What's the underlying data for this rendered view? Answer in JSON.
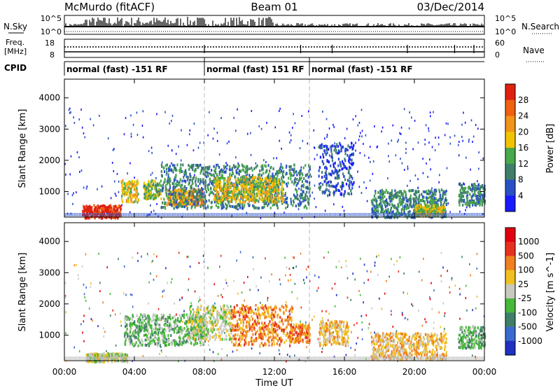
{
  "header": {
    "station": "McMurdo (fitACF)",
    "beam": "Beam 01",
    "date": "03/Dec/2014"
  },
  "top_panels": {
    "nsky_label": "N.Sky",
    "nsearch_label": "N.Search",
    "freq_label": "Freq.",
    "freq_unit": "[MHz]",
    "nave_label": "Nave",
    "cpid_label": "CPID",
    "left_ticks": {
      "nsky_top": "10^5",
      "nsky_bottom": "10^0",
      "freq_top": "18",
      "freq_bottom": "8"
    },
    "right_ticks": {
      "nsky_top": "10^5",
      "nsky_bottom": "10^0",
      "nave_top": "60",
      "nave_bottom": "0"
    }
  },
  "cpid_segments": [
    {
      "label": "normal (fast) -151 RF",
      "start_hour": 0,
      "end_hour": 8
    },
    {
      "label": "normal (fast) 151 RF",
      "start_hour": 8,
      "end_hour": 14
    },
    {
      "label": "normal (fast) -151 RF",
      "start_hour": 14,
      "end_hour": 24
    }
  ],
  "chart_data": [
    {
      "type": "heatmap",
      "name": "power",
      "ylabel": "Slant Range [km]",
      "xlim": [
        0,
        24
      ],
      "ylim": [
        180,
        4600
      ],
      "yticks": [
        "1000",
        "2000",
        "3000",
        "4000"
      ],
      "colorbar": {
        "label": "Power [dB]",
        "ticks": [
          "4",
          "8",
          "12",
          "16",
          "20",
          "24",
          "28"
        ],
        "colors": [
          "#1a1aff",
          "#2a50c8",
          "#3f7f6a",
          "#49a84a",
          "#f2c300",
          "#f0951a",
          "#f06010",
          "#e02010"
        ]
      },
      "blobs": [
        {
          "t0": 1.0,
          "t1": 3.2,
          "r0": 180,
          "r1": 600,
          "level": 7
        },
        {
          "t0": 3.2,
          "t1": 4.2,
          "r0": 700,
          "r1": 1400,
          "level": 4
        },
        {
          "t0": 4.5,
          "t1": 5.5,
          "r0": 800,
          "r1": 1400,
          "level": 3
        },
        {
          "t0": 5.8,
          "t1": 8.0,
          "r0": 600,
          "r1": 1100,
          "level": 5
        },
        {
          "t0": 5.5,
          "t1": 14.0,
          "r0": 500,
          "r1": 1900,
          "level": 2
        },
        {
          "t0": 8.5,
          "t1": 12.5,
          "r0": 700,
          "r1": 1500,
          "level": 4
        },
        {
          "t0": 14.5,
          "t1": 16.5,
          "r0": 900,
          "r1": 2600,
          "level": 1
        },
        {
          "t0": 17.5,
          "t1": 21.8,
          "r0": 200,
          "r1": 1100,
          "level": 2
        },
        {
          "t0": 20.0,
          "t1": 21.7,
          "r0": 250,
          "r1": 600,
          "level": 4
        },
        {
          "t0": 22.5,
          "t1": 24.0,
          "r0": 600,
          "r1": 1300,
          "level": 2
        }
      ]
    },
    {
      "type": "heatmap",
      "name": "velocity",
      "ylabel": "Slant Range [km]",
      "xlabel": "Time UT",
      "xlim": [
        0,
        24
      ],
      "ylim": [
        180,
        4600
      ],
      "xticks": [
        "00:00",
        "04:00",
        "08:00",
        "12:00",
        "16:00",
        "20:00",
        "00:00"
      ],
      "yticks": [
        "1000",
        "2000",
        "3000",
        "4000"
      ],
      "colorbar": {
        "label": "Velocity [m s^-1]",
        "ticks": [
          "1000",
          "500",
          "100",
          "25",
          "-25",
          "-100",
          "-500",
          "-1000"
        ],
        "colors": [
          "#2030c0",
          "#3a6ad0",
          "#3f7f6a",
          "#49b83a",
          "#c8c8c0",
          "#f0c020",
          "#f08020",
          "#e83020",
          "#e00010"
        ]
      },
      "blobs": [
        {
          "t0": 1.2,
          "t1": 3.6,
          "r0": 180,
          "r1": 450,
          "level": 4
        },
        {
          "t0": 3.4,
          "t1": 8.0,
          "r0": 700,
          "r1": 1700,
          "level": 3
        },
        {
          "t0": 7.0,
          "t1": 9.5,
          "r0": 900,
          "r1": 2000,
          "level": 4
        },
        {
          "t0": 9.5,
          "t1": 13.0,
          "r0": 700,
          "r1": 2000,
          "level": 6
        },
        {
          "t0": 12.8,
          "t1": 14.0,
          "r0": 800,
          "r1": 1400,
          "level": 6
        },
        {
          "t0": 14.5,
          "t1": 16.2,
          "r0": 700,
          "r1": 1500,
          "level": 5
        },
        {
          "t0": 17.5,
          "t1": 21.8,
          "r0": 250,
          "r1": 1100,
          "level": 5
        },
        {
          "t0": 22.5,
          "t1": 24.0,
          "r0": 600,
          "r1": 1300,
          "level": 3
        }
      ]
    }
  ]
}
